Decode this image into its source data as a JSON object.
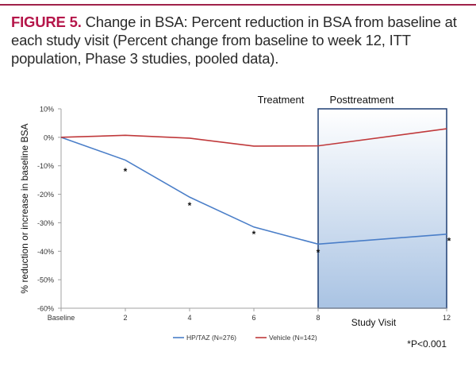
{
  "figure": {
    "label": "FIGURE 5.",
    "caption": " Change in BSA: Percent reduction in BSA from baseline at each study visit (Percent change from baseline to week 12, ITT population, Phase 3 studies, pooled data)."
  },
  "colors": {
    "rule": "#a0224a",
    "label": "#b5164a",
    "hp_taz": "#4a7ec8",
    "vehicle": "#c0393b",
    "posttreatment_border": "#1f3f73",
    "posttreatment_fill_top": "#ffffff",
    "posttreatment_fill_bottom": "#a9c3e3"
  },
  "chart_data": {
    "type": "line",
    "title": "",
    "xlabel": "Study Visit",
    "ylabel": "% reduction or increase in baseline BSA",
    "x": [
      0,
      2,
      4,
      6,
      8,
      12
    ],
    "x_tick_labels": [
      "Baseline",
      "2",
      "4",
      "6",
      "8",
      "12"
    ],
    "xlim": [
      0,
      12
    ],
    "ylim": [
      -60,
      10
    ],
    "y_ticks": [
      10,
      0,
      -10,
      -20,
      -30,
      -40,
      -50,
      -60
    ],
    "y_tick_labels": [
      "10%",
      "0%",
      "-10%",
      "-20%",
      "-30%",
      "-40%",
      "-50%",
      "-60%"
    ],
    "grid": false,
    "series": [
      {
        "name": "HP/TAZ (N=276)",
        "values": [
          0,
          -8,
          -21,
          -31.5,
          -37.5,
          -34
        ]
      },
      {
        "name": "Vehicle (N=142)",
        "values": [
          0,
          0.7,
          -0.3,
          -3.1,
          -3,
          3
        ]
      }
    ],
    "significance_markers": {
      "symbol": "*",
      "points": [
        {
          "x": 2,
          "y": -12
        },
        {
          "x": 4,
          "y": -24
        },
        {
          "x": 6,
          "y": -34
        },
        {
          "x": 8,
          "y": -40.5
        },
        {
          "x": 12,
          "y": -36.5
        }
      ]
    },
    "regions": [
      {
        "label": "Treatment",
        "x_start": 0,
        "x_end": 8
      },
      {
        "label": "Posttreatment",
        "x_start": 8,
        "x_end": 12
      }
    ],
    "legend": [
      "HP/TAZ (N=276)",
      "Vehicle (N=142)"
    ],
    "legend_position": "bottom",
    "footnote": "*P<0.001"
  }
}
